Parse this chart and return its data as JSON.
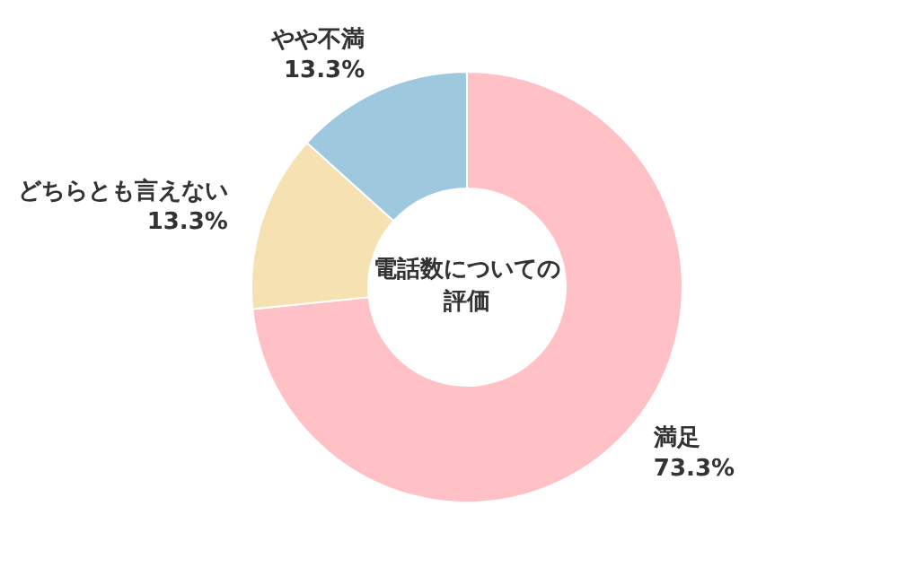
{
  "chart_data": {
    "type": "donut",
    "title": "電話数についての評価",
    "categories": [
      "満足",
      "どちらとも言えない",
      "やや不満"
    ],
    "values": [
      73.3,
      13.3,
      13.3
    ],
    "value_labels": [
      "73.3%",
      "13.3%",
      "13.3%"
    ],
    "colors": [
      "#ffc1c6",
      "#f5e1b1",
      "#9dc8dd"
    ]
  }
}
